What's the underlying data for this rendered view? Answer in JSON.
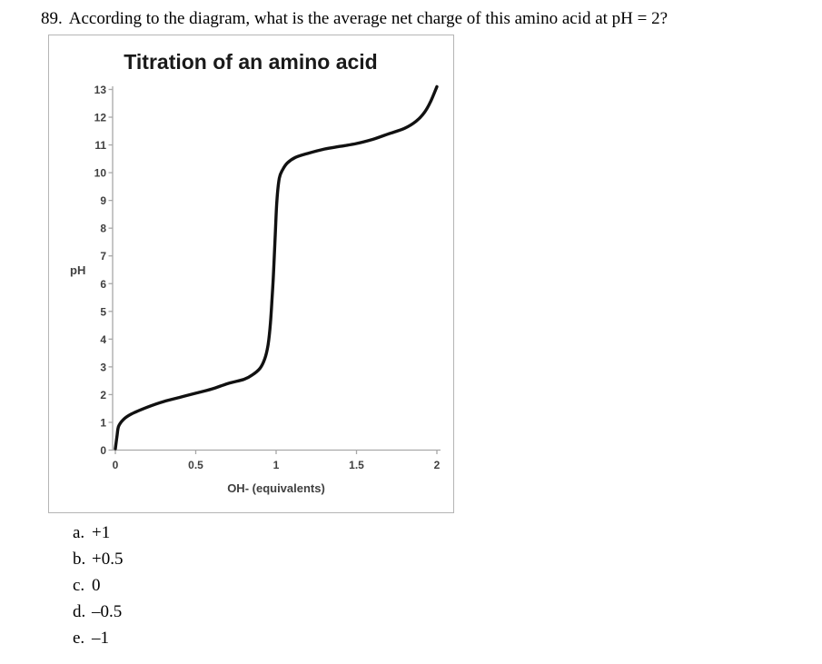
{
  "question": {
    "number": "89.",
    "text": "According to the diagram, what is the average net charge of this amino acid at pH = 2?"
  },
  "options": [
    {
      "letter": "a.",
      "text": "+1"
    },
    {
      "letter": "b.",
      "text": "+0.5"
    },
    {
      "letter": "c.",
      "text": "0"
    },
    {
      "letter": "d.",
      "text": "–0.5"
    },
    {
      "letter": "e.",
      "text": "–1"
    }
  ],
  "chart_data": {
    "type": "line",
    "title": "Titration of an amino acid",
    "xlabel": "OH- (equivalents)",
    "ylabel": "pH",
    "xlim": [
      0,
      2
    ],
    "ylim": [
      0,
      13
    ],
    "x_ticks": [
      0,
      0.5,
      1,
      1.5,
      2
    ],
    "x_tick_labels": [
      "0",
      "0.5",
      "1",
      "1.5",
      "2"
    ],
    "y_ticks": [
      0,
      1,
      2,
      3,
      4,
      5,
      6,
      7,
      8,
      9,
      10,
      11,
      12,
      13
    ],
    "grid": false,
    "legend_position": "none",
    "line_color": "#111111",
    "axis_color": "#a8a8a8",
    "tick_label_color": "#404040",
    "series": [
      {
        "name": "titration-curve",
        "points": [
          [
            0,
            0.05
          ],
          [
            0.01,
            0.5
          ],
          [
            0.02,
            0.85
          ],
          [
            0.05,
            1.1
          ],
          [
            0.1,
            1.3
          ],
          [
            0.2,
            1.55
          ],
          [
            0.3,
            1.75
          ],
          [
            0.4,
            1.9
          ],
          [
            0.5,
            2.05
          ],
          [
            0.6,
            2.2
          ],
          [
            0.7,
            2.4
          ],
          [
            0.8,
            2.55
          ],
          [
            0.85,
            2.7
          ],
          [
            0.9,
            2.95
          ],
          [
            0.93,
            3.3
          ],
          [
            0.95,
            3.8
          ],
          [
            0.965,
            4.6
          ],
          [
            0.975,
            5.5
          ],
          [
            0.985,
            6.5
          ],
          [
            0.995,
            7.8
          ],
          [
            1.005,
            9.0
          ],
          [
            1.02,
            9.8
          ],
          [
            1.04,
            10.1
          ],
          [
            1.07,
            10.35
          ],
          [
            1.12,
            10.55
          ],
          [
            1.2,
            10.7
          ],
          [
            1.3,
            10.85
          ],
          [
            1.4,
            10.95
          ],
          [
            1.5,
            11.05
          ],
          [
            1.6,
            11.2
          ],
          [
            1.7,
            11.4
          ],
          [
            1.8,
            11.6
          ],
          [
            1.87,
            11.85
          ],
          [
            1.92,
            12.15
          ],
          [
            1.96,
            12.55
          ],
          [
            2.0,
            13.1
          ]
        ]
      }
    ]
  }
}
